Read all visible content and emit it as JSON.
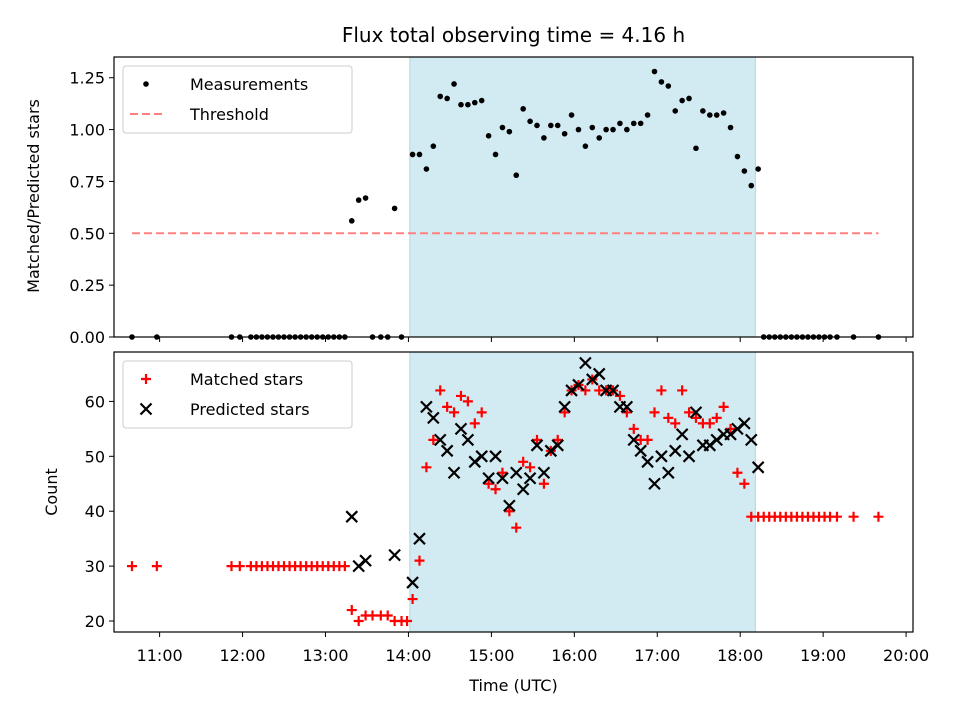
{
  "chart_data": [
    {
      "type": "scatter",
      "title": "Flux total observing time = 4.16 h",
      "xlabel": "",
      "ylabel": "Matched/Predicted stars",
      "xlim": [
        "10:27",
        "20:05"
      ],
      "ylim": [
        0,
        1.35
      ],
      "yticks": [
        "0.00",
        "0.25",
        "0.50",
        "0.75",
        "1.00",
        "1.25"
      ],
      "shaded_region": {
        "from": "14:01",
        "to": "18:11",
        "color": "#add8e6"
      },
      "legend_position": "upper left",
      "series": [
        {
          "name": "Measurements",
          "marker": "dot",
          "color": "#000000",
          "points": [
            [
              "10:40",
              0
            ],
            [
              "10:58",
              0
            ],
            [
              "11:52",
              0
            ],
            [
              "11:58",
              0
            ],
            [
              "12:06",
              0
            ],
            [
              "12:10",
              0
            ],
            [
              "12:14",
              0
            ],
            [
              "12:18",
              0
            ],
            [
              "12:22",
              0
            ],
            [
              "12:26",
              0
            ],
            [
              "12:30",
              0
            ],
            [
              "12:34",
              0
            ],
            [
              "12:38",
              0
            ],
            [
              "12:42",
              0
            ],
            [
              "12:46",
              0
            ],
            [
              "12:50",
              0
            ],
            [
              "12:54",
              0
            ],
            [
              "12:58",
              0
            ],
            [
              "13:02",
              0
            ],
            [
              "13:06",
              0
            ],
            [
              "13:10",
              0
            ],
            [
              "13:14",
              0
            ],
            [
              "13:19",
              0.56
            ],
            [
              "13:24",
              0.66
            ],
            [
              "13:29",
              0.67
            ],
            [
              "13:34",
              0
            ],
            [
              "13:40",
              0
            ],
            [
              "13:45",
              0
            ],
            [
              "13:50",
              0.62
            ],
            [
              "13:55",
              0
            ],
            [
              "14:03",
              0.88
            ],
            [
              "14:08",
              0.88
            ],
            [
              "14:13",
              0.81
            ],
            [
              "14:18",
              0.92
            ],
            [
              "14:23",
              1.16
            ],
            [
              "14:28",
              1.15
            ],
            [
              "14:33",
              1.22
            ],
            [
              "14:38",
              1.12
            ],
            [
              "14:43",
              1.12
            ],
            [
              "14:48",
              1.13
            ],
            [
              "14:53",
              1.14
            ],
            [
              "14:58",
              0.97
            ],
            [
              "15:03",
              0.88
            ],
            [
              "15:08",
              1.01
            ],
            [
              "15:13",
              0.99
            ],
            [
              "15:18",
              0.78
            ],
            [
              "15:23",
              1.1
            ],
            [
              "15:28",
              1.04
            ],
            [
              "15:33",
              1.02
            ],
            [
              "15:38",
              0.96
            ],
            [
              "15:43",
              1.02
            ],
            [
              "15:48",
              1.02
            ],
            [
              "15:53",
              0.98
            ],
            [
              "15:58",
              1.07
            ],
            [
              "16:03",
              1.0
            ],
            [
              "16:08",
              0.92
            ],
            [
              "16:13",
              1.01
            ],
            [
              "16:18",
              0.96
            ],
            [
              "16:23",
              1.0
            ],
            [
              "16:28",
              1.0
            ],
            [
              "16:33",
              1.03
            ],
            [
              "16:38",
              1.0
            ],
            [
              "16:43",
              1.03
            ],
            [
              "16:48",
              1.03
            ],
            [
              "16:53",
              1.07
            ],
            [
              "16:58",
              1.28
            ],
            [
              "17:03",
              1.23
            ],
            [
              "17:08",
              1.21
            ],
            [
              "17:13",
              1.09
            ],
            [
              "17:18",
              1.14
            ],
            [
              "17:23",
              1.15
            ],
            [
              "17:28",
              0.91
            ],
            [
              "17:33",
              1.09
            ],
            [
              "17:38",
              1.07
            ],
            [
              "17:43",
              1.07
            ],
            [
              "17:48",
              1.08
            ],
            [
              "17:53",
              1.01
            ],
            [
              "17:58",
              0.87
            ],
            [
              "18:03",
              0.8
            ],
            [
              "18:08",
              0.73
            ],
            [
              "18:13",
              0.81
            ],
            [
              "18:17",
              0
            ],
            [
              "18:21",
              0
            ],
            [
              "18:25",
              0
            ],
            [
              "18:29",
              0
            ],
            [
              "18:33",
              0
            ],
            [
              "18:37",
              0
            ],
            [
              "18:41",
              0
            ],
            [
              "18:45",
              0
            ],
            [
              "18:49",
              0
            ],
            [
              "18:53",
              0
            ],
            [
              "18:57",
              0
            ],
            [
              "19:01",
              0
            ],
            [
              "19:05",
              0
            ],
            [
              "19:10",
              0
            ],
            [
              "19:22",
              0
            ],
            [
              "19:40",
              0
            ]
          ]
        },
        {
          "name": "Threshold",
          "marker": "dashed-line",
          "color": "#ff8080",
          "points": [
            [
              "10:40",
              0.5
            ],
            [
              "19:40",
              0.5
            ]
          ]
        }
      ]
    },
    {
      "type": "scatter",
      "title": "",
      "xlabel": "Time (UTC)",
      "ylabel": "Count",
      "xlim": [
        "10:27",
        "20:05"
      ],
      "ylim": [
        18,
        69
      ],
      "yticks": [
        "20",
        "30",
        "40",
        "50",
        "60"
      ],
      "xticks": [
        "11:00",
        "12:00",
        "13:00",
        "14:00",
        "15:00",
        "16:00",
        "17:00",
        "18:00",
        "19:00",
        "20:00"
      ],
      "shaded_region": {
        "from": "14:01",
        "to": "18:11",
        "color": "#add8e6"
      },
      "legend_position": "upper left",
      "series": [
        {
          "name": "Matched stars",
          "marker": "plus",
          "color": "#ff0000",
          "points": [
            [
              "10:40",
              30
            ],
            [
              "10:58",
              30
            ],
            [
              "11:52",
              30
            ],
            [
              "11:58",
              30
            ],
            [
              "12:06",
              30
            ],
            [
              "12:10",
              30
            ],
            [
              "12:14",
              30
            ],
            [
              "12:18",
              30
            ],
            [
              "12:22",
              30
            ],
            [
              "12:26",
              30
            ],
            [
              "12:30",
              30
            ],
            [
              "12:34",
              30
            ],
            [
              "12:38",
              30
            ],
            [
              "12:42",
              30
            ],
            [
              "12:46",
              30
            ],
            [
              "12:50",
              30
            ],
            [
              "12:54",
              30
            ],
            [
              "12:58",
              30
            ],
            [
              "13:02",
              30
            ],
            [
              "13:06",
              30
            ],
            [
              "13:10",
              30
            ],
            [
              "13:14",
              30
            ],
            [
              "13:19",
              22
            ],
            [
              "13:24",
              20
            ],
            [
              "13:29",
              21
            ],
            [
              "13:34",
              21
            ],
            [
              "13:40",
              21
            ],
            [
              "13:45",
              21
            ],
            [
              "13:50",
              20
            ],
            [
              "13:55",
              20
            ],
            [
              "13:59",
              20
            ],
            [
              "14:03",
              24
            ],
            [
              "14:08",
              31
            ],
            [
              "14:13",
              48
            ],
            [
              "14:18",
              53
            ],
            [
              "14:23",
              62
            ],
            [
              "14:28",
              59
            ],
            [
              "14:33",
              58
            ],
            [
              "14:38",
              61
            ],
            [
              "14:43",
              60
            ],
            [
              "14:48",
              56
            ],
            [
              "14:53",
              58
            ],
            [
              "14:58",
              45
            ],
            [
              "15:03",
              44
            ],
            [
              "15:08",
              47
            ],
            [
              "15:13",
              40
            ],
            [
              "15:18",
              37
            ],
            [
              "15:23",
              49
            ],
            [
              "15:28",
              48
            ],
            [
              "15:33",
              53
            ],
            [
              "15:38",
              45
            ],
            [
              "15:43",
              51
            ],
            [
              "15:48",
              53
            ],
            [
              "15:53",
              58
            ],
            [
              "15:58",
              62
            ],
            [
              "16:03",
              63
            ],
            [
              "16:08",
              62
            ],
            [
              "16:13",
              64
            ],
            [
              "16:18",
              62
            ],
            [
              "16:23",
              62
            ],
            [
              "16:28",
              62
            ],
            [
              "16:33",
              61
            ],
            [
              "16:38",
              58
            ],
            [
              "16:43",
              55
            ],
            [
              "16:48",
              53
            ],
            [
              "16:53",
              53
            ],
            [
              "16:58",
              58
            ],
            [
              "17:03",
              62
            ],
            [
              "17:08",
              57
            ],
            [
              "17:13",
              56
            ],
            [
              "17:18",
              62
            ],
            [
              "17:23",
              58
            ],
            [
              "17:28",
              57
            ],
            [
              "17:33",
              56
            ],
            [
              "17:38",
              56
            ],
            [
              "17:43",
              57
            ],
            [
              "17:48",
              59
            ],
            [
              "17:53",
              55
            ],
            [
              "17:58",
              47
            ],
            [
              "18:03",
              45
            ],
            [
              "18:08",
              39
            ],
            [
              "18:13",
              39
            ],
            [
              "18:17",
              39
            ],
            [
              "18:21",
              39
            ],
            [
              "18:25",
              39
            ],
            [
              "18:29",
              39
            ],
            [
              "18:33",
              39
            ],
            [
              "18:37",
              39
            ],
            [
              "18:41",
              39
            ],
            [
              "18:45",
              39
            ],
            [
              "18:49",
              39
            ],
            [
              "18:53",
              39
            ],
            [
              "18:57",
              39
            ],
            [
              "19:01",
              39
            ],
            [
              "19:05",
              39
            ],
            [
              "19:10",
              39
            ],
            [
              "19:22",
              39
            ],
            [
              "19:40",
              39
            ]
          ]
        },
        {
          "name": "Predicted stars",
          "marker": "x",
          "color": "#000000",
          "points": [
            [
              "13:19",
              39
            ],
            [
              "13:24",
              30
            ],
            [
              "13:29",
              31
            ],
            [
              "13:50",
              32
            ],
            [
              "14:03",
              27
            ],
            [
              "14:08",
              35
            ],
            [
              "14:13",
              59
            ],
            [
              "14:18",
              57
            ],
            [
              "14:23",
              53
            ],
            [
              "14:28",
              51
            ],
            [
              "14:33",
              47
            ],
            [
              "14:38",
              55
            ],
            [
              "14:43",
              53
            ],
            [
              "14:48",
              49
            ],
            [
              "14:53",
              50
            ],
            [
              "14:58",
              46
            ],
            [
              "15:03",
              50
            ],
            [
              "15:08",
              46
            ],
            [
              "15:13",
              41
            ],
            [
              "15:18",
              47
            ],
            [
              "15:23",
              44
            ],
            [
              "15:28",
              46
            ],
            [
              "15:33",
              52
            ],
            [
              "15:38",
              47
            ],
            [
              "15:43",
              51
            ],
            [
              "15:48",
              52
            ],
            [
              "15:53",
              59
            ],
            [
              "15:58",
              62
            ],
            [
              "16:03",
              63
            ],
            [
              "16:08",
              67
            ],
            [
              "16:13",
              64
            ],
            [
              "16:18",
              65
            ],
            [
              "16:23",
              62
            ],
            [
              "16:28",
              62
            ],
            [
              "16:33",
              59
            ],
            [
              "16:38",
              59
            ],
            [
              "16:43",
              53
            ],
            [
              "16:48",
              51
            ],
            [
              "16:53",
              49
            ],
            [
              "16:58",
              45
            ],
            [
              "17:03",
              50
            ],
            [
              "17:08",
              47
            ],
            [
              "17:13",
              51
            ],
            [
              "17:18",
              54
            ],
            [
              "17:23",
              50
            ],
            [
              "17:28",
              58
            ],
            [
              "17:33",
              52
            ],
            [
              "17:38",
              52
            ],
            [
              "17:43",
              53
            ],
            [
              "17:48",
              54
            ],
            [
              "17:53",
              54
            ],
            [
              "17:58",
              55
            ],
            [
              "18:03",
              56
            ],
            [
              "18:08",
              53
            ],
            [
              "18:13",
              48
            ]
          ]
        }
      ]
    }
  ]
}
